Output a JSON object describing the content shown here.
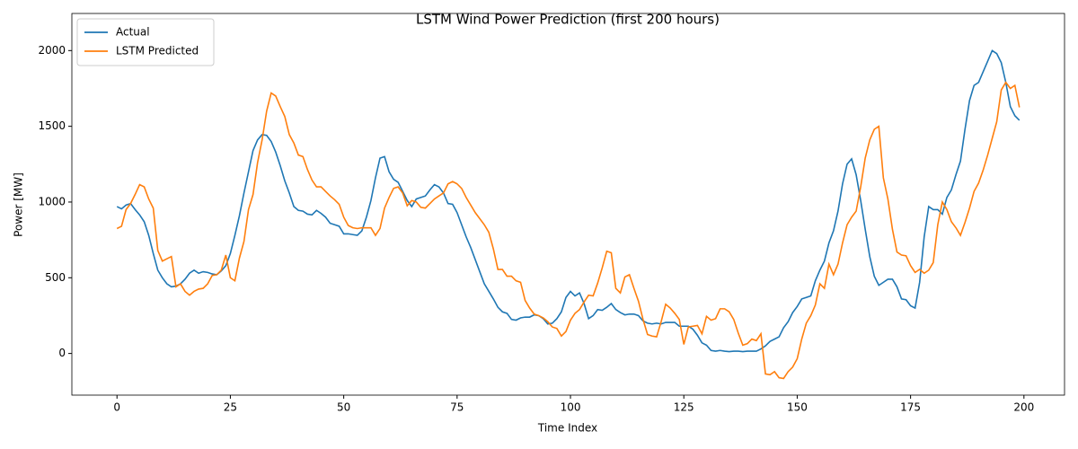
{
  "chart_data": {
    "type": "line",
    "title": "LSTM Wind Power Prediction (first 200 hours)",
    "x_label": "Time Index",
    "y_label": "Power [MW]",
    "x": [
      0,
      1,
      2,
      3,
      4,
      5,
      6,
      7,
      8,
      9,
      10,
      11,
      12,
      13,
      14,
      15,
      16,
      17,
      18,
      19,
      20,
      21,
      22,
      23,
      24,
      25,
      26,
      27,
      28,
      29,
      30,
      31,
      32,
      33,
      34,
      35,
      36,
      37,
      38,
      39,
      40,
      41,
      42,
      43,
      44,
      45,
      46,
      47,
      48,
      49,
      50,
      51,
      52,
      53,
      54,
      55,
      56,
      57,
      58,
      59,
      60,
      61,
      62,
      63,
      64,
      65,
      66,
      67,
      68,
      69,
      70,
      71,
      72,
      73,
      74,
      75,
      76,
      77,
      78,
      79,
      80,
      81,
      82,
      83,
      84,
      85,
      86,
      87,
      88,
      89,
      90,
      91,
      92,
      93,
      94,
      95,
      96,
      97,
      98,
      99,
      100,
      101,
      102,
      103,
      104,
      105,
      106,
      107,
      108,
      109,
      110,
      111,
      112,
      113,
      114,
      115,
      116,
      117,
      118,
      119,
      120,
      121,
      122,
      123,
      124,
      125,
      126,
      127,
      128,
      129,
      130,
      131,
      132,
      133,
      134,
      135,
      136,
      137,
      138,
      139,
      140,
      141,
      142,
      143,
      144,
      145,
      146,
      147,
      148,
      149,
      150,
      151,
      152,
      153,
      154,
      155,
      156,
      157,
      158,
      159,
      160,
      161,
      162,
      163,
      164,
      165,
      166,
      167,
      168,
      169,
      170,
      171,
      172,
      173,
      174,
      175,
      176,
      177,
      178,
      179,
      180,
      181,
      182,
      183,
      184,
      185,
      186,
      187,
      188,
      189,
      190,
      191,
      192,
      193,
      194,
      195,
      196,
      197,
      198,
      199
    ],
    "series": [
      {
        "name": "Actual",
        "color": "#1f77b4",
        "values": [
          970,
          955,
          980,
          990,
          950,
          915,
          870,
          780,
          660,
          550,
          500,
          460,
          440,
          445,
          460,
          490,
          530,
          550,
          530,
          540,
          535,
          525,
          520,
          545,
          580,
          660,
          780,
          910,
          1060,
          1200,
          1340,
          1410,
          1445,
          1440,
          1400,
          1330,
          1240,
          1140,
          1060,
          970,
          945,
          940,
          920,
          915,
          945,
          925,
          900,
          860,
          850,
          840,
          790,
          790,
          785,
          780,
          810,
          900,
          1010,
          1160,
          1290,
          1300,
          1200,
          1150,
          1130,
          1070,
          1010,
          970,
          1020,
          1030,
          1040,
          1080,
          1115,
          1100,
          1060,
          990,
          985,
          930,
          850,
          770,
          700,
          620,
          540,
          460,
          410,
          360,
          305,
          275,
          265,
          225,
          220,
          235,
          240,
          240,
          255,
          250,
          230,
          195,
          200,
          230,
          275,
          370,
          410,
          380,
          400,
          330,
          230,
          250,
          290,
          285,
          305,
          330,
          290,
          270,
          255,
          260,
          260,
          250,
          215,
          200,
          195,
          200,
          195,
          205,
          205,
          205,
          180,
          180,
          180,
          160,
          120,
          70,
          55,
          20,
          15,
          20,
          15,
          12,
          15,
          15,
          12,
          15,
          15,
          15,
          30,
          50,
          80,
          95,
          110,
          170,
          210,
          270,
          310,
          360,
          370,
          380,
          480,
          550,
          610,
          730,
          810,
          940,
          1120,
          1250,
          1285,
          1180,
          1010,
          820,
          640,
          510,
          450,
          470,
          490,
          490,
          440,
          360,
          355,
          315,
          300,
          470,
          770,
          970,
          950,
          950,
          920,
          1030,
          1080,
          1180,
          1270,
          1480,
          1670,
          1770,
          1790,
          1860,
          1930,
          2000,
          1980,
          1920,
          1790,
          1630,
          1570,
          1540
        ]
      },
      {
        "name": "LSTM Predicted",
        "color": "#ff7f0e",
        "values": [
          825,
          840,
          950,
          990,
          1050,
          1115,
          1100,
          1020,
          960,
          680,
          610,
          625,
          640,
          440,
          460,
          410,
          385,
          410,
          425,
          430,
          460,
          515,
          520,
          550,
          650,
          500,
          480,
          630,
          740,
          950,
          1050,
          1260,
          1410,
          1600,
          1720,
          1700,
          1630,
          1565,
          1445,
          1390,
          1310,
          1300,
          1215,
          1145,
          1100,
          1100,
          1070,
          1040,
          1015,
          985,
          900,
          845,
          830,
          825,
          830,
          830,
          830,
          780,
          825,
          960,
          1030,
          1090,
          1100,
          1060,
          975,
          1010,
          1000,
          965,
          960,
          990,
          1020,
          1040,
          1060,
          1120,
          1135,
          1120,
          1090,
          1030,
          980,
          930,
          890,
          850,
          800,
          690,
          555,
          555,
          510,
          510,
          480,
          470,
          350,
          300,
          260,
          250,
          235,
          210,
          175,
          165,
          115,
          145,
          220,
          265,
          290,
          340,
          385,
          380,
          465,
          565,
          675,
          665,
          430,
          400,
          505,
          520,
          430,
          345,
          225,
          125,
          115,
          110,
          210,
          325,
          300,
          265,
          225,
          60,
          175,
          180,
          185,
          130,
          245,
          220,
          230,
          295,
          295,
          275,
          225,
          135,
          55,
          65,
          95,
          85,
          130,
          -135,
          -140,
          -120,
          -160,
          -165,
          -120,
          -90,
          -35,
          95,
          200,
          250,
          320,
          460,
          430,
          590,
          520,
          590,
          730,
          850,
          900,
          940,
          1100,
          1290,
          1410,
          1480,
          1500,
          1160,
          1020,
          820,
          670,
          650,
          645,
          580,
          535,
          555,
          530,
          550,
          600,
          850,
          1000,
          950,
          870,
          830,
          780,
          865,
          960,
          1070,
          1125,
          1210,
          1310,
          1420,
          1530,
          1740,
          1790,
          1750,
          1770,
          1625
        ]
      }
    ],
    "xlim": [
      -9.95,
      208.95
    ],
    "xticks": [
      0,
      25,
      50,
      75,
      100,
      125,
      150,
      175,
      200
    ],
    "ylim": [
      -275,
      2245
    ],
    "yticks": [
      0,
      500,
      1000,
      1500,
      2000
    ],
    "legend": "upper left",
    "grid": false
  }
}
